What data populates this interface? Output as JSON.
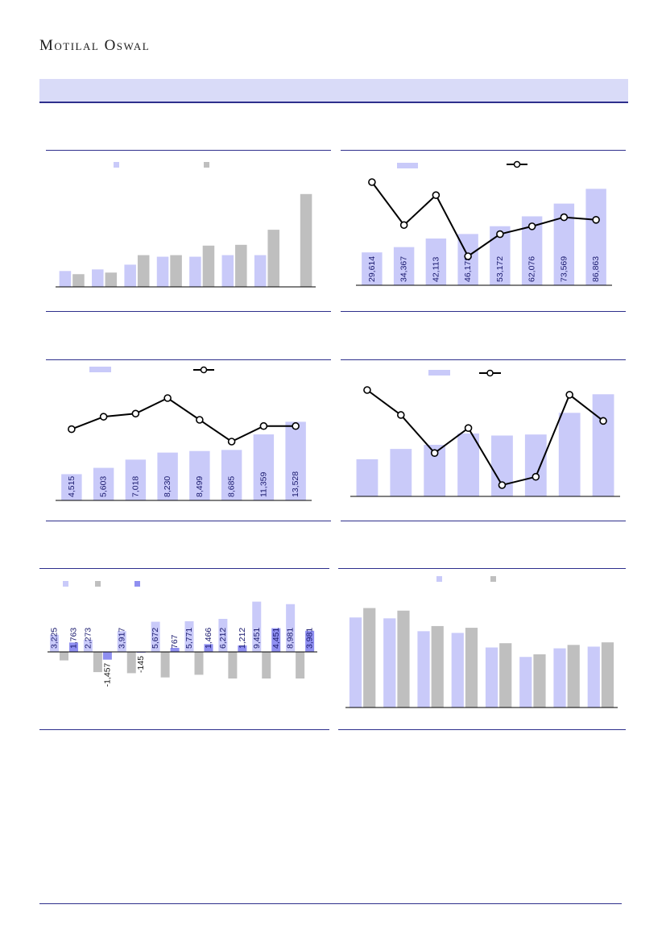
{
  "header": {
    "brand": "Motilal Oswal"
  },
  "colors": {
    "light": "#c9caf9",
    "grey": "#bfbfbf",
    "mid": "#8f8ff0",
    "line": "#000000",
    "rule": "#2e2f8c"
  },
  "chart_data": [
    {
      "id": "c1",
      "type": "bar",
      "categories": [
        "",
        "",
        "",
        "",
        "",
        "",
        "",
        ""
      ],
      "series": [
        {
          "values": [
            20,
            22,
            28,
            38,
            38,
            40,
            40,
            null
          ]
        },
        {
          "values": [
            16,
            18,
            40,
            40,
            52,
            53,
            72,
            117
          ]
        }
      ],
      "ylim": [
        0,
        130
      ],
      "legend": "top",
      "grid": false
    },
    {
      "id": "c2",
      "type": "bar",
      "categories": [
        "",
        "",
        "",
        "",
        "",
        "",
        "",
        ""
      ],
      "series": [
        {
          "values": [
            29614,
            34367,
            42113,
            46178,
            53172,
            62076,
            73569,
            86863
          ]
        },
        {
          "values": [
            95,
            62,
            85,
            38,
            55,
            61,
            68,
            66
          ]
        }
      ],
      "ylim": [
        0,
        90000
      ],
      "legend": "top",
      "grid": false
    },
    {
      "id": "c3",
      "type": "bar",
      "categories": [
        "",
        "",
        "",
        "",
        "",
        "",
        "",
        ""
      ],
      "series": [
        {
          "values": [
            4515,
            5603,
            7018,
            8230,
            8499,
            8685,
            11359,
            13528
          ]
        },
        {
          "values": [
            72,
            76,
            77,
            82,
            75,
            68,
            73,
            73
          ]
        }
      ],
      "ylim": [
        0,
        16500
      ],
      "legend": "top",
      "grid": false
    },
    {
      "id": "c4",
      "type": "bar",
      "categories": [
        "",
        "",
        "",
        "",
        "",
        "",
        "",
        ""
      ],
      "series": [
        {
          "values": [
            36,
            46,
            50,
            61,
            59,
            60,
            81,
            99
          ]
        },
        {
          "values": [
            96,
            75,
            43,
            64,
            16,
            23,
            92,
            70
          ]
        }
      ],
      "ylim": [
        0,
        100
      ],
      "legend": "top",
      "grid": false
    },
    {
      "id": "c5",
      "type": "bar",
      "categories": [
        "",
        "",
        "",
        "",
        "",
        "",
        "",
        ""
      ],
      "series": [
        {
          "values": [
            3225,
            2273,
            3917,
            5672,
            5771,
            6212,
            9451,
            8981
          ]
        },
        {
          "values": [
            -1600,
            -3800,
            -4000,
            -4800,
            -4300,
            -5000,
            -5000,
            -5000
          ]
        },
        {
          "values": [
            1763,
            -1457,
            -145,
            767,
            1466,
            1212,
            4451,
            3981
          ]
        }
      ],
      "ylim": [
        -8000,
        9500
      ],
      "legend": "top",
      "grid": false
    },
    {
      "id": "c6",
      "type": "bar",
      "categories": [
        "",
        "",
        "",
        "",
        "",
        "",
        "",
        ""
      ],
      "series": [
        {
          "values": [
            105,
            104,
            89,
            87,
            70,
            59,
            69,
            71
          ]
        },
        {
          "values": [
            116,
            113,
            95,
            93,
            75,
            62,
            73,
            76
          ]
        }
      ],
      "ylim": [
        0,
        125
      ],
      "legend": "top",
      "grid": false
    }
  ]
}
